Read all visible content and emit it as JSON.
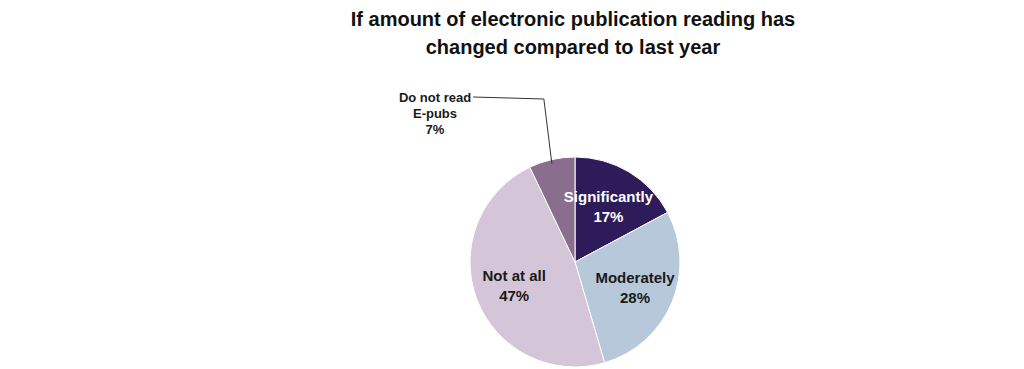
{
  "chart_data": {
    "type": "pie",
    "title": "If amount of electronic publication reading has changed compared to last year",
    "categories": [
      "Significantly",
      "Moderately",
      "Not at all",
      "Do not read E-pubs"
    ],
    "values": [
      17,
      28,
      47,
      7
    ],
    "value_labels": [
      "17%",
      "28%",
      "47%",
      "7%"
    ],
    "colors": [
      "#2d1b5a",
      "#b6c8d9",
      "#d4c6d8",
      "#8a6e8d"
    ],
    "data_labels": true
  }
}
